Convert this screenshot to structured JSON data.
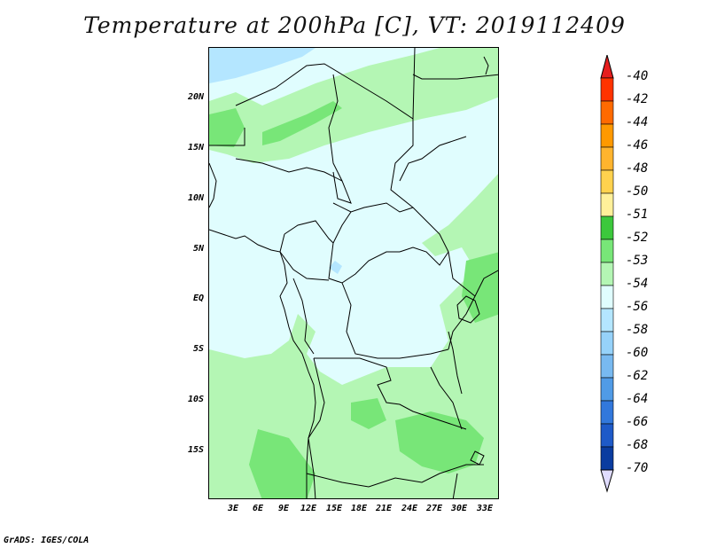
{
  "title": "Temperature at 200hPa [C], VT: 2019112409",
  "credit": "GrADS: IGES/COLA",
  "axes": {
    "lat_labels": [
      "20N",
      "15N",
      "10N",
      "5N",
      "EQ",
      "5S",
      "10S",
      "15S"
    ],
    "lon_labels": [
      "3E",
      "6E",
      "9E",
      "12E",
      "15E",
      "18E",
      "21E",
      "24E",
      "27E",
      "30E",
      "33E"
    ]
  },
  "colorbar": {
    "labels": [
      "-40",
      "-42",
      "-44",
      "-46",
      "-48",
      "-50",
      "-51",
      "-52",
      "-53",
      "-54",
      "-56",
      "-58",
      "-60",
      "-62",
      "-64",
      "-66",
      "-68",
      "-70"
    ],
    "colors": [
      "#ff3300",
      "#ff6a00",
      "#ff9900",
      "#ffb42e",
      "#ffd24e",
      "#fff09a",
      "#3cc83c",
      "#78e678",
      "#b4f6b4",
      "#e0fdfe",
      "#b4e6ff",
      "#96d2fa",
      "#78b9f0",
      "#509be6",
      "#3278dc",
      "#1e5ac8",
      "#0a3ca0",
      "#000a64"
    ],
    "top_arrow_color": "#e61e1e",
    "bottom_arrow_color": "#e0dcff"
  }
}
